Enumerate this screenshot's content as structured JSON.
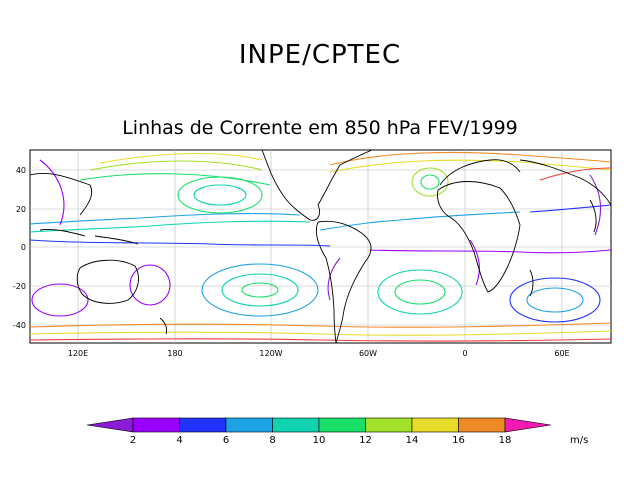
{
  "header": {
    "title": "INPE/CPTEC",
    "subtitle": "Linhas de Corrente em 850 hPa FEV/1999"
  },
  "map": {
    "lat_labels": [
      "40",
      "20",
      "0",
      "-20",
      "-40"
    ],
    "lon_labels": [
      "120E",
      "180",
      "120W",
      "60W",
      "0",
      "60E"
    ]
  },
  "colorbar": {
    "ticks": [
      "2",
      "4",
      "6",
      "8",
      "10",
      "12",
      "14",
      "16",
      "18"
    ],
    "colors": [
      "#8a1bd6",
      "#9a00ff",
      "#2233ff",
      "#1ea2e6",
      "#0fd3b0",
      "#19e069",
      "#a2e02a",
      "#e8dc2a",
      "#f08a26",
      "#f23a3a",
      "#f21ab0"
    ],
    "unit": "m/s"
  }
}
